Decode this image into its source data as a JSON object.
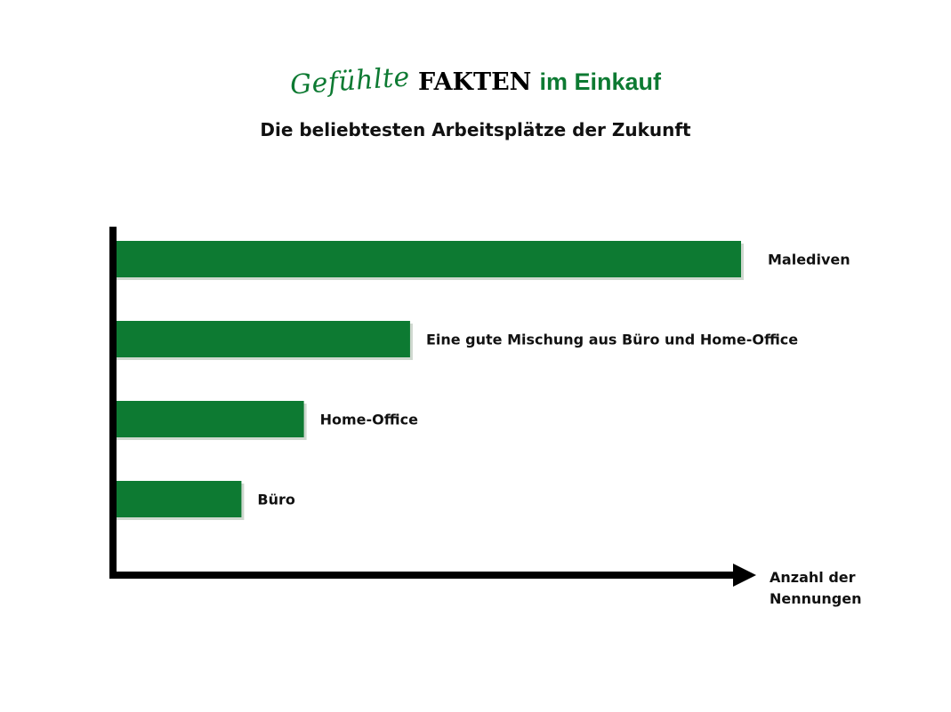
{
  "title": {
    "script": "Gefühlte",
    "bold": "FAKTEN",
    "green": "im Einkauf"
  },
  "chart_data": {
    "type": "bar",
    "orientation": "horizontal",
    "subtitle": "Die beliebtesten Arbeitsplätze der Zukunft",
    "xlabel": [
      "Anzahl der",
      "Nennungen"
    ],
    "ylabel": "",
    "categories": [
      "Malediven",
      "Eine gute Mischung aus Büro und Home-Office",
      "Home-Office",
      "Büro"
    ],
    "values": [
      100,
      47,
      30,
      20
    ],
    "xlim": [
      0,
      100
    ],
    "grid": false,
    "legend": "none",
    "color": "#0d7a32"
  }
}
